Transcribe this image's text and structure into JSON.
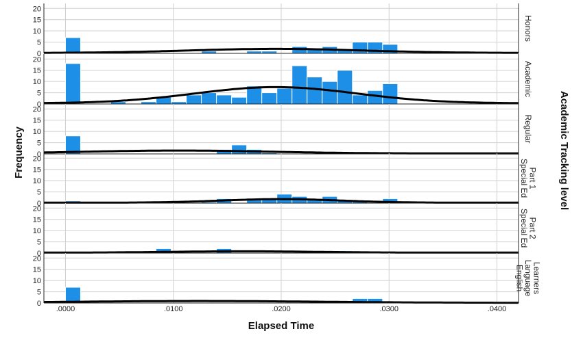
{
  "chart_data": {
    "type": "histogram",
    "title": "",
    "xlabel": "Elapsed Time",
    "ylabel": "Frequency",
    "panel_axis_label": "Academic Tracking level",
    "xlim": [
      -0.002,
      0.042
    ],
    "ylim": [
      0,
      21
    ],
    "x_ticks": [
      ".0000",
      ".0100",
      ".0200",
      ".0300",
      ".0400"
    ],
    "x_tick_values": [
      0,
      0.01,
      0.02,
      0.03,
      0.04
    ],
    "y_ticks": [
      "0",
      "5",
      "10",
      "15",
      "20"
    ],
    "y_tick_values": [
      0,
      5,
      10,
      15,
      20
    ],
    "bar_color": "#1e8fe6",
    "curve_color": "#000000",
    "bin_width": 0.0014,
    "panels": [
      {
        "label_lines": [
          "Honors"
        ],
        "bars": [
          [
            0.0007,
            7
          ],
          [
            0.0133,
            1
          ],
          [
            0.0175,
            1
          ],
          [
            0.0189,
            1
          ],
          [
            0.0217,
            3
          ],
          [
            0.0231,
            2
          ],
          [
            0.0245,
            3
          ],
          [
            0.0259,
            2
          ],
          [
            0.0273,
            5
          ],
          [
            0.0287,
            5
          ],
          [
            0.0301,
            4
          ]
        ],
        "normal_curve": {
          "peak": 2,
          "mean": 0.0195,
          "sd": 0.008,
          "base": 0.2
        }
      },
      {
        "label_lines": [
          "Academic"
        ],
        "bars": [
          [
            0.0007,
            18
          ],
          [
            0.0049,
            1
          ],
          [
            0.0077,
            1
          ],
          [
            0.0091,
            3
          ],
          [
            0.0105,
            1
          ],
          [
            0.0119,
            4
          ],
          [
            0.0133,
            5
          ],
          [
            0.0147,
            4
          ],
          [
            0.0161,
            3
          ],
          [
            0.0175,
            8
          ],
          [
            0.0189,
            5
          ],
          [
            0.0203,
            7
          ],
          [
            0.0217,
            17
          ],
          [
            0.0231,
            12
          ],
          [
            0.0245,
            10
          ],
          [
            0.0259,
            15
          ],
          [
            0.0273,
            4
          ],
          [
            0.0287,
            6
          ],
          [
            0.0301,
            9
          ]
        ],
        "normal_curve": {
          "peak": 7.5,
          "mean": 0.0195,
          "sd": 0.0075,
          "base": 0.3
        }
      },
      {
        "label_lines": [
          "Regular"
        ],
        "bars": [
          [
            0.0007,
            8
          ],
          [
            0.0147,
            2
          ],
          [
            0.0161,
            4
          ],
          [
            0.0175,
            2
          ],
          [
            0.0189,
            0.5
          ]
        ],
        "normal_curve": {
          "peak": 1.5,
          "mean": 0.0105,
          "sd": 0.0085,
          "base": 0.2
        }
      },
      {
        "label_lines": [
          "Special Ed",
          "Part 1"
        ],
        "bars": [
          [
            0.0007,
            1
          ],
          [
            0.0133,
            0.5
          ],
          [
            0.0147,
            2
          ],
          [
            0.0175,
            2
          ],
          [
            0.0189,
            2
          ],
          [
            0.0203,
            4
          ],
          [
            0.0217,
            3
          ],
          [
            0.0231,
            2
          ],
          [
            0.0245,
            3
          ],
          [
            0.0259,
            1
          ],
          [
            0.0273,
            1
          ],
          [
            0.0301,
            2
          ]
        ],
        "normal_curve": {
          "peak": 1.8,
          "mean": 0.02,
          "sd": 0.0055,
          "base": 0.2
        }
      },
      {
        "label_lines": [
          "Special Ed",
          "Part 2"
        ],
        "bars": [
          [
            0.0091,
            2
          ],
          [
            0.0147,
            2
          ],
          [
            0.0259,
            1
          ]
        ],
        "normal_curve": {
          "peak": 0.8,
          "mean": 0.0165,
          "sd": 0.0065,
          "base": 0.2
        }
      },
      {
        "label_lines": [
          "English",
          "Language",
          "Learners"
        ],
        "bars": [
          [
            0.0007,
            7
          ],
          [
            0.0147,
            0.3
          ],
          [
            0.0161,
            0.3
          ],
          [
            0.0273,
            2
          ],
          [
            0.0287,
            2
          ]
        ],
        "normal_curve": {
          "peak": 0.9,
          "mean": 0.0125,
          "sd": 0.011,
          "base": 0.1
        }
      }
    ]
  }
}
